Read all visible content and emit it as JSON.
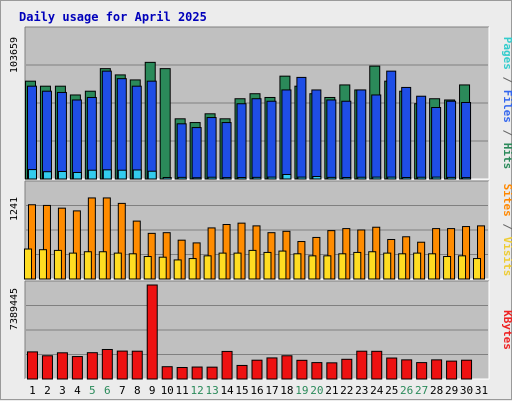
{
  "chart_data": {
    "type": "bar",
    "title": "Daily usage for April 2025",
    "categories": [
      "1",
      "2",
      "3",
      "4",
      "5",
      "6",
      "7",
      "8",
      "9",
      "10",
      "11",
      "12",
      "13",
      "14",
      "15",
      "16",
      "17",
      "18",
      "19",
      "20",
      "21",
      "22",
      "23",
      "24",
      "25",
      "26",
      "27",
      "28",
      "29",
      "30",
      "31"
    ],
    "weekend_days": [
      "5",
      "6",
      "12",
      "13",
      "19",
      "20",
      "26",
      "27"
    ],
    "panels": [
      {
        "name": "traffic",
        "ytick_label": "103659",
        "ymax": 118000,
        "right_labels": [
          {
            "text": "Pages",
            "color": "#33cccc"
          },
          {
            "text": " / ",
            "color": "#666666"
          },
          {
            "text": "Files",
            "color": "#3366ee"
          },
          {
            "text": " / ",
            "color": "#666666"
          },
          {
            "text": "Hits",
            "color": "#2b8a5a"
          }
        ],
        "series": [
          {
            "name": "Hits",
            "color": "#2b8a5a",
            "values": [
              78000,
              74000,
              74000,
              67000,
              70000,
              88000,
              83000,
              79000,
              93000,
              88000,
              48000,
              45000,
              52000,
              48000,
              64000,
              68000,
              65000,
              82000,
              74000,
              68000,
              65000,
              75000,
              71000,
              90000,
              78000,
              70000,
              60000,
              64000,
              63000,
              75000,
              0
            ]
          },
          {
            "name": "Files",
            "color": "#1e4ee6",
            "values": [
              74000,
              70000,
              69000,
              63000,
              65000,
              86000,
              80000,
              74000,
              78000,
              0,
              44000,
              41000,
              49000,
              45000,
              60000,
              64000,
              62000,
              71000,
              81000,
              71000,
              63000,
              62000,
              71000,
              67000,
              86000,
              73000,
              66000,
              57000,
              62000,
              61000,
              0
            ]
          },
          {
            "name": "Pages",
            "color": "#33ccee",
            "values": [
              7500,
              5800,
              6000,
              5200,
              7000,
              7300,
              7000,
              7200,
              6200,
              1200,
              1300,
              1000,
              1400,
              1100,
              1200,
              1300,
              1500,
              3600,
              1500,
              2000,
              1300,
              1200,
              1400,
              1500,
              1500,
              1200,
              1400,
              1500,
              1300,
              1100,
              0
            ]
          }
        ]
      },
      {
        "name": "visitors",
        "ytick_label": "1241",
        "ymax": 1380,
        "right_labels": [
          {
            "text": "Sites",
            "color": "#ff8800"
          },
          {
            "text": " / ",
            "color": "#666666"
          },
          {
            "text": "Visits",
            "color": "#eecc33"
          }
        ],
        "series": [
          {
            "name": "Visits",
            "color": "#ff8c00",
            "values": [
              1090,
              1080,
              1040,
              1000,
              1190,
              1190,
              1110,
              850,
              670,
              680,
              570,
              530,
              750,
              800,
              820,
              780,
              680,
              700,
              550,
              610,
              710,
              740,
              720,
              760,
              580,
              620,
              540,
              740,
              740,
              770,
              780
            ]
          },
          {
            "name": "Sites",
            "color": "#ffdd22",
            "values": [
              440,
              430,
              420,
              380,
              400,
              400,
              380,
              370,
              330,
              320,
              280,
              300,
              340,
              380,
              380,
              420,
              390,
              410,
              370,
              340,
              340,
              370,
              390,
              400,
              380,
              370,
              380,
              370,
              330,
              340,
              300
            ]
          }
        ]
      },
      {
        "name": "kbytes",
        "ytick_label": "7389445",
        "ymax": 8250000,
        "right_labels": [
          {
            "text": "KBytes",
            "color": "#ee2222"
          }
        ],
        "series": [
          {
            "name": "KBytes",
            "color": "#ee1111",
            "values": [
              2380000,
              2040000,
              2300000,
              1970000,
              2310000,
              2590000,
              2450000,
              2440000,
              9400000,
              1080000,
              1010000,
              1050000,
              1040000,
              2420000,
              1190000,
              1650000,
              1850000,
              2040000,
              1640000,
              1440000,
              1420000,
              1730000,
              2440000,
              2430000,
              1840000,
              1680000,
              1440000,
              1680000,
              1570000,
              1650000,
              0
            ]
          }
        ]
      }
    ]
  }
}
